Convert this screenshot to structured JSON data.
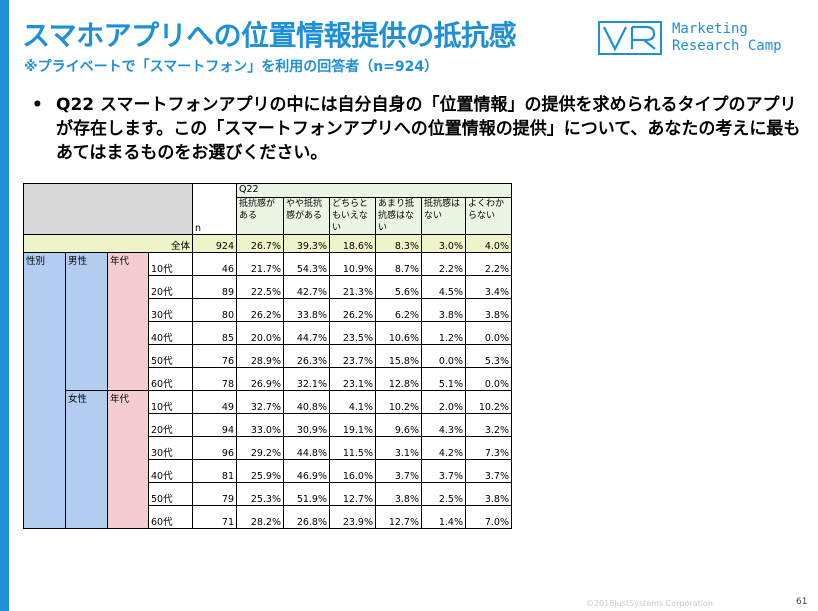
{
  "title": "スマホアプリへの位置情報提供の抵抗感",
  "subtitle": "※プライベートで「スマートフォン」を利用の回答者（n=924）",
  "logo": {
    "line1": "Marketing",
    "line2": "Research Camp",
    "icon": "mr-logo-icon",
    "color": "#1e8fd9"
  },
  "question": {
    "bullet": "•",
    "text": "Q22 スマートフォンアプリの中には自分自身の「位置情報」の提供を求められるタイプのアプリが存在します。この「スマートフォンアプリへの位置情報の提供」について、あなたの考えに最もあてはまるものをお選びください。"
  },
  "table": {
    "q_label": "Q22",
    "n_label": "n",
    "options": [
      "抵抗感がある",
      "やや抵抗感がある",
      "どちらともいえない",
      "あまり抵抗感はない",
      "抵抗感はない",
      "よくわからない"
    ],
    "total": {
      "label": "全体",
      "n": "924",
      "values": [
        "26.7%",
        "39.3%",
        "18.6%",
        "8.3%",
        "3.0%",
        "4.0%"
      ]
    },
    "seibetsu_label": "性別",
    "nendai_label": "年代",
    "groups": [
      {
        "sex": "男性",
        "rows": [
          {
            "age": "10代",
            "n": "46",
            "values": [
              "21.7%",
              "54.3%",
              "10.9%",
              "8.7%",
              "2.2%",
              "2.2%"
            ]
          },
          {
            "age": "20代",
            "n": "89",
            "values": [
              "22.5%",
              "42.7%",
              "21.3%",
              "5.6%",
              "4.5%",
              "3.4%"
            ]
          },
          {
            "age": "30代",
            "n": "80",
            "values": [
              "26.2%",
              "33.8%",
              "26.2%",
              "6.2%",
              "3.8%",
              "3.8%"
            ]
          },
          {
            "age": "40代",
            "n": "85",
            "values": [
              "20.0%",
              "44.7%",
              "23.5%",
              "10.6%",
              "1.2%",
              "0.0%"
            ]
          },
          {
            "age": "50代",
            "n": "76",
            "values": [
              "28.9%",
              "26.3%",
              "23.7%",
              "15.8%",
              "0.0%",
              "5.3%"
            ]
          },
          {
            "age": "60代",
            "n": "78",
            "values": [
              "26.9%",
              "32.1%",
              "23.1%",
              "12.8%",
              "5.1%",
              "0.0%"
            ]
          }
        ]
      },
      {
        "sex": "女性",
        "rows": [
          {
            "age": "10代",
            "n": "49",
            "values": [
              "32.7%",
              "40.8%",
              "4.1%",
              "10.2%",
              "2.0%",
              "10.2%"
            ]
          },
          {
            "age": "20代",
            "n": "94",
            "values": [
              "33.0%",
              "30.9%",
              "19.1%",
              "9.6%",
              "4.3%",
              "3.2%"
            ]
          },
          {
            "age": "30代",
            "n": "96",
            "values": [
              "29.2%",
              "44.8%",
              "11.5%",
              "3.1%",
              "4.2%",
              "7.3%"
            ]
          },
          {
            "age": "40代",
            "n": "81",
            "values": [
              "25.9%",
              "46.9%",
              "16.0%",
              "3.7%",
              "3.7%",
              "3.7%"
            ]
          },
          {
            "age": "50代",
            "n": "79",
            "values": [
              "25.3%",
              "51.9%",
              "12.7%",
              "3.8%",
              "2.5%",
              "3.8%"
            ]
          },
          {
            "age": "60代",
            "n": "71",
            "values": [
              "28.2%",
              "26.8%",
              "23.9%",
              "12.7%",
              "1.4%",
              "7.0%"
            ]
          }
        ]
      }
    ]
  },
  "footer": {
    "copyright": "©2018JustSystems Corporation",
    "page": "61"
  }
}
